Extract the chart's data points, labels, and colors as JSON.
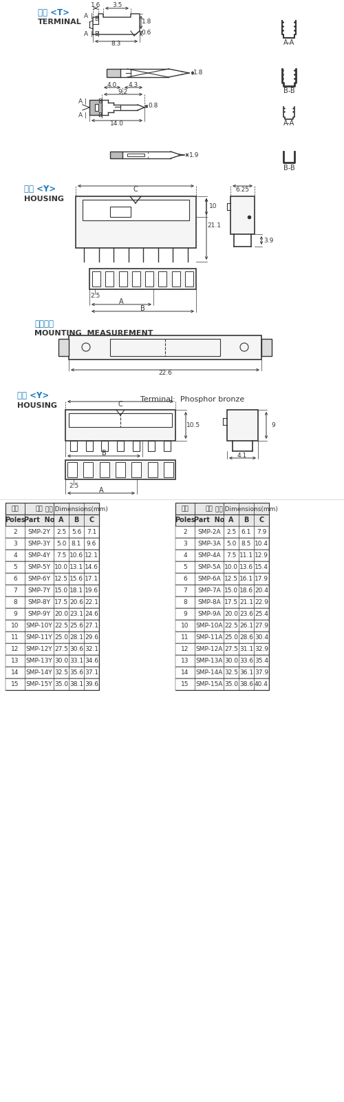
{
  "title": "Smpsmh2.5mm圧接バーコネクタ仕入れ・メーカー・工場",
  "bg_color": "#ffffff",
  "line_color": "#333333",
  "blue_color": "#1a7abf",
  "label_color": "#555555",
  "table_header_bg": "#e8e8e8",
  "table_border": "#999999",
  "terminal_label_cn": "端子 <T>",
  "terminal_label_en": "TERMINAL",
  "housing_label_cn": "外壳 <Y>",
  "housing_label_en": "HOUSING",
  "housing2_label_cn": "外壳 <Y>",
  "housing2_label_en": "HOUSING",
  "mounting_label_cn": "安装尺寸",
  "mounting_label_en": "MOUNTING  MEASUREMENT",
  "material_label": "Terminal:  Phosphor bronze",
  "table_Y_headers": [
    "线数\nPoles",
    "编号\nPart  No",
    "尺寸 Dimensions(mm)\nA",
    "尺寸 Dimensions(mm)\nB",
    "尺寸 Dimensions(mm)\nC"
  ],
  "table_Y_data": [
    [
      2,
      "SMP-2Y",
      2.5,
      5.6,
      7.1
    ],
    [
      3,
      "SMP-3Y",
      5.0,
      8.1,
      9.6
    ],
    [
      4,
      "SMP-4Y",
      7.5,
      10.6,
      12.1
    ],
    [
      5,
      "SMP-5Y",
      10.0,
      13.1,
      14.6
    ],
    [
      6,
      "SMP-6Y",
      12.5,
      15.6,
      17.1
    ],
    [
      7,
      "SMP-7Y",
      15.0,
      18.1,
      19.6
    ],
    [
      8,
      "SMP-8Y",
      17.5,
      20.6,
      22.1
    ],
    [
      9,
      "SMP-9Y",
      20.0,
      23.1,
      24.6
    ],
    [
      10,
      "SMP-10Y",
      22.5,
      25.6,
      27.1
    ],
    [
      11,
      "SMP-11Y",
      25.0,
      28.1,
      29.6
    ],
    [
      12,
      "SMP-12Y",
      27.5,
      30.6,
      32.1
    ],
    [
      13,
      "SMP-13Y",
      30.0,
      33.1,
      34.6
    ],
    [
      14,
      "SMP-14Y",
      32.5,
      35.6,
      37.1
    ],
    [
      15,
      "SMP-15Y",
      35.0,
      38.1,
      39.6
    ]
  ],
  "table_A_data": [
    [
      2,
      "SMP-2A",
      2.5,
      6.1,
      7.9
    ],
    [
      3,
      "SMP-3A",
      5.0,
      8.5,
      10.4
    ],
    [
      4,
      "SMP-4A",
      7.5,
      11.1,
      12.9
    ],
    [
      5,
      "SMP-5A",
      10.0,
      13.6,
      15.4
    ],
    [
      6,
      "SMP-6A",
      12.5,
      16.1,
      17.9
    ],
    [
      7,
      "SMP-7A",
      15.0,
      18.6,
      20.4
    ],
    [
      8,
      "SMP-8A",
      17.5,
      21.1,
      22.9
    ],
    [
      9,
      "SMP-9A",
      20.0,
      23.6,
      25.4
    ],
    [
      10,
      "SMP-10A",
      22.5,
      26.1,
      27.9
    ],
    [
      11,
      "SMP-11A",
      25.0,
      28.6,
      30.4
    ],
    [
      12,
      "SMP-12A",
      27.5,
      31.1,
      32.9
    ],
    [
      13,
      "SMP-13A",
      30.0,
      33.6,
      35.4
    ],
    [
      14,
      "SMP-14A",
      32.5,
      36.1,
      37.9
    ],
    [
      15,
      "SMP-15A",
      35.0,
      38.6,
      40.4
    ]
  ]
}
